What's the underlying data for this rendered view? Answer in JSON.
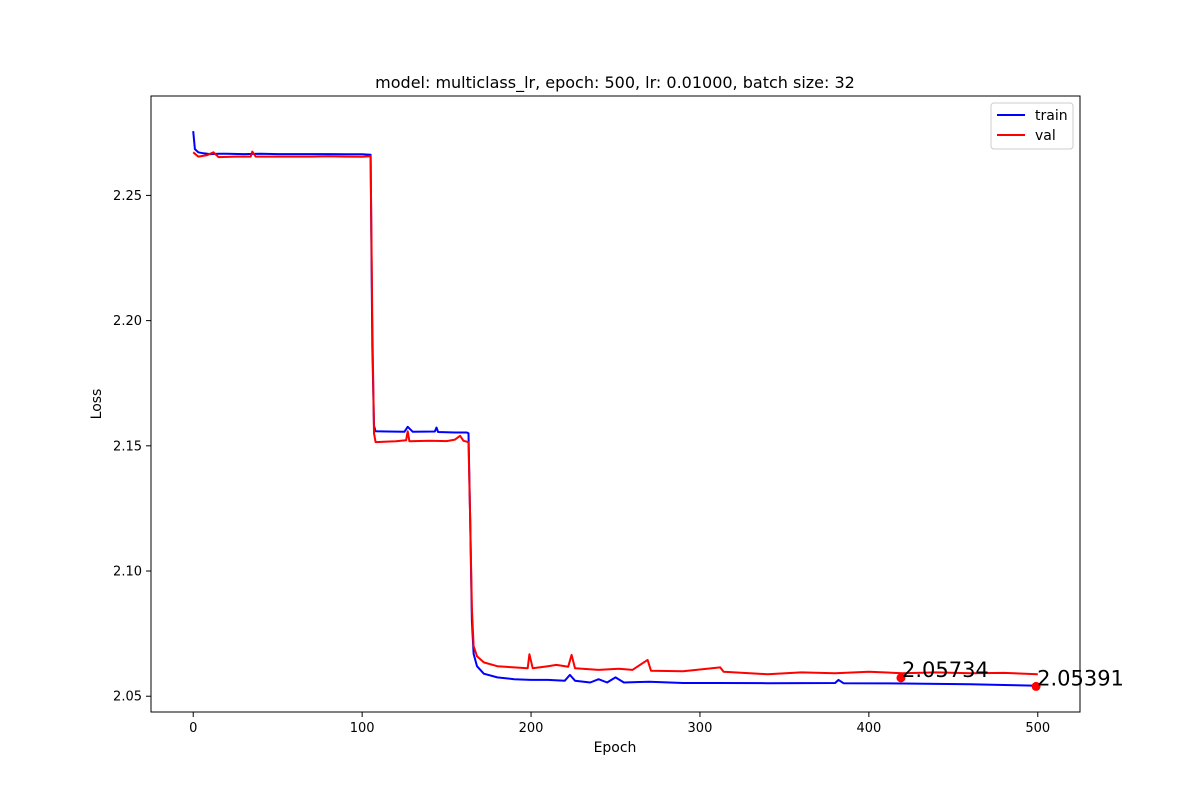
{
  "chart_data": {
    "type": "line",
    "title": "model: multiclass_lr, epoch: 500, lr: 0.01000, batch size: 32",
    "xlabel": "Epoch",
    "ylabel": "Loss",
    "xlim": [
      -25,
      525
    ],
    "ylim": [
      2.0437,
      2.2897
    ],
    "x_ticks": [
      0,
      100,
      200,
      300,
      400,
      500
    ],
    "y_ticks": [
      2.05,
      2.1,
      2.15,
      2.2,
      2.25
    ],
    "x_tick_labels": [
      "0",
      "100",
      "200",
      "300",
      "400",
      "500"
    ],
    "y_tick_labels": [
      "2.05",
      "2.10",
      "2.15",
      "2.20",
      "2.25"
    ],
    "grid": false,
    "legend_position": "top-right",
    "series": [
      {
        "name": "train",
        "color": "#0000ff",
        "points": [
          [
            0,
            2.2757
          ],
          [
            1,
            2.2685
          ],
          [
            3,
            2.2672
          ],
          [
            6,
            2.2668
          ],
          [
            10,
            2.2665
          ],
          [
            15,
            2.2666
          ],
          [
            20,
            2.2666
          ],
          [
            30,
            2.2665
          ],
          [
            40,
            2.2666
          ],
          [
            50,
            2.2665
          ],
          [
            60,
            2.2665
          ],
          [
            70,
            2.2665
          ],
          [
            80,
            2.2665
          ],
          [
            90,
            2.2664
          ],
          [
            100,
            2.2664
          ],
          [
            105,
            2.2662
          ],
          [
            106,
            2.19
          ],
          [
            107,
            2.158
          ],
          [
            108,
            2.1558
          ],
          [
            115,
            2.1557
          ],
          [
            125,
            2.1556
          ],
          [
            127,
            2.1576
          ],
          [
            130,
            2.1556
          ],
          [
            143,
            2.1557
          ],
          [
            144,
            2.1573
          ],
          [
            145,
            2.1555
          ],
          [
            155,
            2.1553
          ],
          [
            162,
            2.1553
          ],
          [
            163,
            2.155
          ],
          [
            164,
            2.12
          ],
          [
            165,
            2.08
          ],
          [
            166,
            2.067
          ],
          [
            168,
            2.062
          ],
          [
            172,
            2.059
          ],
          [
            180,
            2.0575
          ],
          [
            190,
            2.0568
          ],
          [
            200,
            2.0565
          ],
          [
            210,
            2.0565
          ],
          [
            220,
            2.0562
          ],
          [
            223,
            2.0585
          ],
          [
            226,
            2.0562
          ],
          [
            235,
            2.0555
          ],
          [
            240,
            2.0568
          ],
          [
            245,
            2.0555
          ],
          [
            250,
            2.0575
          ],
          [
            255,
            2.0555
          ],
          [
            270,
            2.0558
          ],
          [
            290,
            2.0553
          ],
          [
            310,
            2.0553
          ],
          [
            340,
            2.0552
          ],
          [
            380,
            2.0553
          ],
          [
            382,
            2.0565
          ],
          [
            385,
            2.0552
          ],
          [
            420,
            2.0551
          ],
          [
            460,
            2.0548
          ],
          [
            480,
            2.0545
          ],
          [
            500,
            2.0542
          ]
        ]
      },
      {
        "name": "val",
        "color": "#ff0000",
        "points": [
          [
            0,
            2.2672
          ],
          [
            3,
            2.2655
          ],
          [
            8,
            2.266
          ],
          [
            12,
            2.2672
          ],
          [
            15,
            2.2653
          ],
          [
            25,
            2.2655
          ],
          [
            34,
            2.2655
          ],
          [
            35,
            2.2675
          ],
          [
            37,
            2.2655
          ],
          [
            50,
            2.2655
          ],
          [
            70,
            2.2655
          ],
          [
            80,
            2.2656
          ],
          [
            90,
            2.2655
          ],
          [
            100,
            2.2654
          ],
          [
            105,
            2.2656
          ],
          [
            106,
            2.2
          ],
          [
            107,
            2.155
          ],
          [
            108,
            2.1515
          ],
          [
            120,
            2.1518
          ],
          [
            126,
            2.1522
          ],
          [
            127,
            2.1558
          ],
          [
            128,
            2.1518
          ],
          [
            140,
            2.152
          ],
          [
            150,
            2.1519
          ],
          [
            155,
            2.1525
          ],
          [
            158,
            2.154
          ],
          [
            160,
            2.152
          ],
          [
            163,
            2.1515
          ],
          [
            164,
            2.12
          ],
          [
            165,
            2.085
          ],
          [
            166,
            2.07
          ],
          [
            168,
            2.066
          ],
          [
            172,
            2.0635
          ],
          [
            180,
            2.062
          ],
          [
            190,
            2.0615
          ],
          [
            198,
            2.0612
          ],
          [
            199,
            2.0668
          ],
          [
            201,
            2.0612
          ],
          [
            210,
            2.062
          ],
          [
            215,
            2.0625
          ],
          [
            222,
            2.0618
          ],
          [
            224,
            2.0665
          ],
          [
            226,
            2.0612
          ],
          [
            240,
            2.0605
          ],
          [
            252,
            2.061
          ],
          [
            260,
            2.0605
          ],
          [
            269,
            2.0645
          ],
          [
            271,
            2.0602
          ],
          [
            290,
            2.06
          ],
          [
            312,
            2.0615
          ],
          [
            314,
            2.0598
          ],
          [
            340,
            2.0588
          ],
          [
            360,
            2.0595
          ],
          [
            380,
            2.0592
          ],
          [
            400,
            2.0598
          ],
          [
            420,
            2.0592
          ],
          [
            440,
            2.0595
          ],
          [
            460,
            2.0592
          ],
          [
            480,
            2.0593
          ],
          [
            500,
            2.0588
          ]
        ]
      }
    ],
    "annotations": [
      {
        "x": 419,
        "y": 2.05734,
        "text": "2.05734",
        "color": "#ff0000"
      },
      {
        "x": 499,
        "y": 2.05391,
        "text": "2.05391",
        "color": "#ff0000"
      }
    ]
  }
}
